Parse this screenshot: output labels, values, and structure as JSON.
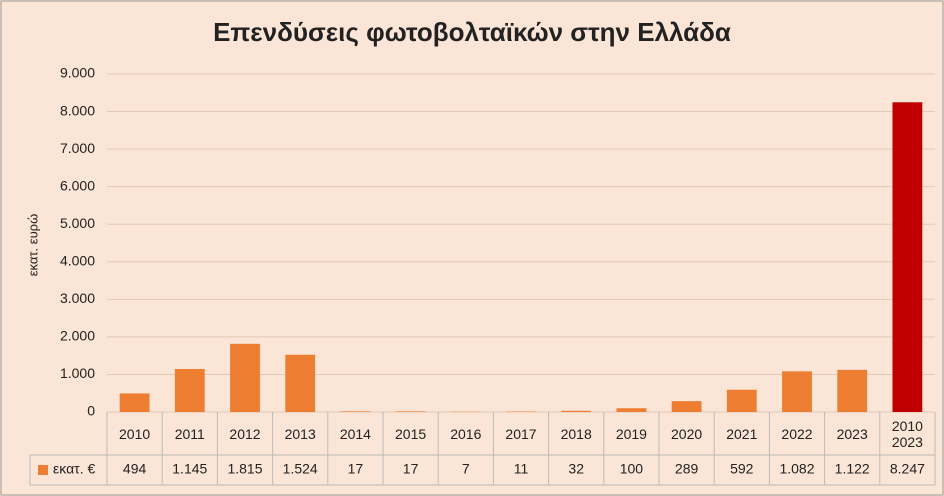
{
  "chart_data": {
    "type": "bar",
    "title": "Επενδύσεις φωτοβολταϊκών στην Ελλάδα",
    "y_label": "εκατ. ευρώ",
    "categories": [
      "2010",
      "2011",
      "2012",
      "2013",
      "2014",
      "2015",
      "2016",
      "2017",
      "2018",
      "2019",
      "2020",
      "2021",
      "2022",
      "2023",
      "2010 2023"
    ],
    "series": [
      {
        "name": "εκατ. €",
        "color": "#ed7d31",
        "colors": [
          "#ed7d31",
          "#ed7d31",
          "#ed7d31",
          "#ed7d31",
          "#ed7d31",
          "#ed7d31",
          "#ed7d31",
          "#ed7d31",
          "#ed7d31",
          "#ed7d31",
          "#ed7d31",
          "#ed7d31",
          "#ed7d31",
          "#ed7d31",
          "#c00000"
        ],
        "values": [
          494,
          1145,
          1815,
          1524,
          17,
          17,
          7,
          11,
          32,
          100,
          289,
          592,
          1082,
          1122,
          8247
        ],
        "value_labels": [
          "494",
          "1.145",
          "1.815",
          "1.524",
          "17",
          "17",
          "7",
          "11",
          "32",
          "100",
          "289",
          "592",
          "1.082",
          "1.122",
          "8.247"
        ]
      }
    ],
    "ylim": [
      0,
      9000
    ],
    "yticks": [
      0,
      {
        "value": 1000,
        "label": "1.000"
      },
      {
        "value": 2000,
        "label": "2.000"
      },
      {
        "value": 3000,
        "label": "3.000"
      },
      {
        "value": 4000,
        "label": "4.000"
      },
      {
        "value": 5000,
        "label": "5.000"
      },
      {
        "value": 6000,
        "label": "6.000"
      },
      {
        "value": 7000,
        "label": "7.000"
      },
      {
        "value": 8000,
        "label": "8.000"
      },
      {
        "value": 9000,
        "label": "9.000"
      }
    ],
    "grid": true
  }
}
